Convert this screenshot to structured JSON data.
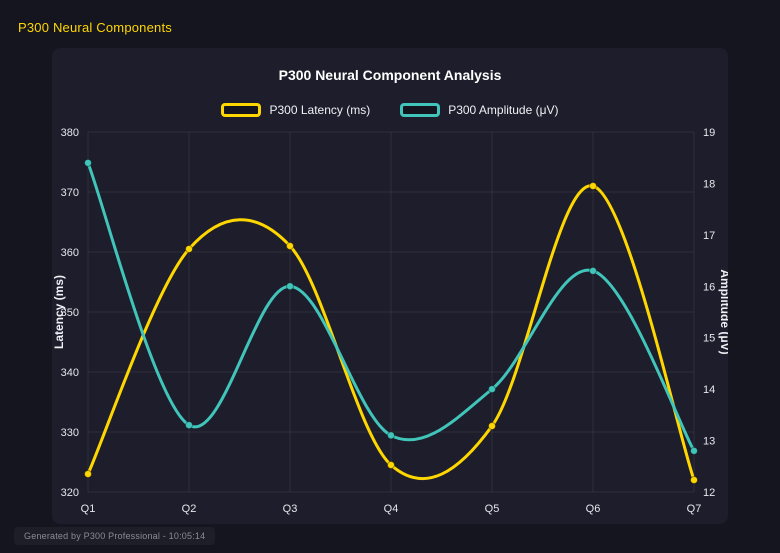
{
  "page": {
    "header": "P300 Neural Components",
    "footer": "Generated by P300 Professional - 10:05:14"
  },
  "colors": {
    "background": "#15151f",
    "panel": "#1d1d2b",
    "header_accent": "#ffd700",
    "grid": "rgba(255,255,255,0.08)",
    "tick_text": "#e6e6ee",
    "axis_title_text": "#f0f0f5",
    "latency_series": "#ffd700",
    "amplitude_series": "#41c4b9"
  },
  "chart_data": {
    "type": "line",
    "title": "P300 Neural Component Analysis",
    "categories": [
      "Q1",
      "Q2",
      "Q3",
      "Q4",
      "Q5",
      "Q6",
      "Q7"
    ],
    "series": [
      {
        "name": "P300 Latency (ms)",
        "axis": "left",
        "color": "#ffd700",
        "values": [
          323,
          360.5,
          361,
          324.5,
          331,
          371,
          322
        ]
      },
      {
        "name": "P300 Amplitude (μV)",
        "axis": "right",
        "color": "#41c4b9",
        "values": [
          18.4,
          13.3,
          16,
          13.1,
          14,
          16.3,
          12.8
        ]
      }
    ],
    "left_axis": {
      "label": "Latency (ms)",
      "min": 320,
      "max": 380,
      "ticks": [
        320,
        330,
        340,
        350,
        360,
        370,
        380
      ]
    },
    "right_axis": {
      "label": "Amplitude (μV)",
      "min": 12,
      "max": 19,
      "ticks": [
        12,
        13,
        14,
        15,
        16,
        17,
        18,
        19
      ]
    },
    "grid": true,
    "legend_position": "top",
    "line_smoothing": "spline"
  }
}
